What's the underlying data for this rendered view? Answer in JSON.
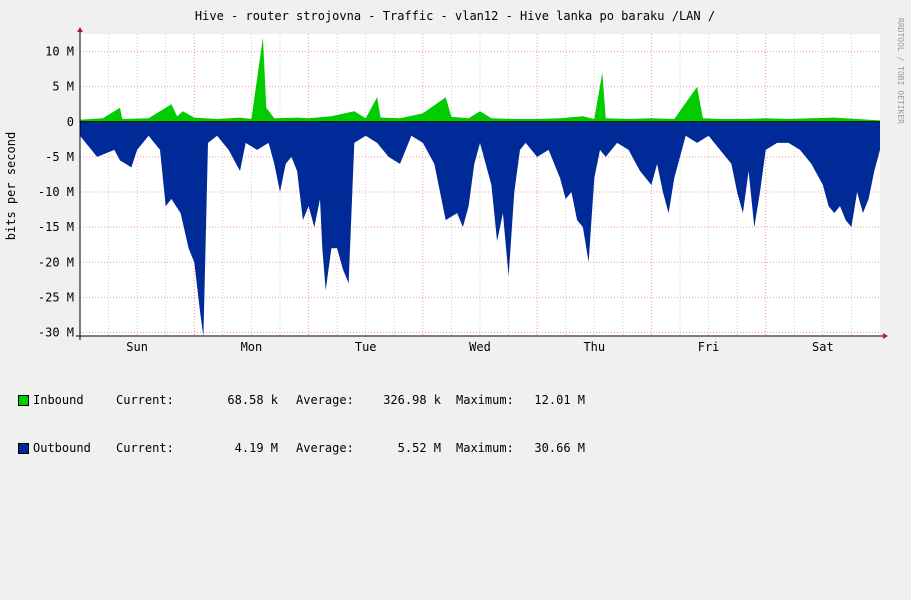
{
  "chart_data": {
    "type": "area",
    "title": "Hive - router strojovna - Traffic - vlan12 - Hive lanka po baraku /LAN /",
    "ylabel": "bits per second",
    "watermark": "RRDTOOL / TOBI OETIKER",
    "y_ticks": [
      "10 M",
      "5 M",
      "0",
      "-5 M",
      "-10 M",
      "-15 M",
      "-20 M",
      "-25 M",
      "-30 M"
    ],
    "y_tick_values": [
      10,
      5,
      0,
      -5,
      -10,
      -15,
      -20,
      -25,
      -30
    ],
    "ylim": [
      -30.5,
      12.5
    ],
    "y_unit": "Mbit/s",
    "x_ticks": [
      "Sun",
      "Mon",
      "Tue",
      "Wed",
      "Thu",
      "Fri",
      "Sat"
    ],
    "x_tick_positions": [
      0.5,
      1.5,
      2.5,
      3.5,
      4.5,
      5.5,
      6.5
    ],
    "xlim": [
      0,
      7
    ],
    "x_unit": "days",
    "grid": true,
    "colors": {
      "inbound": "#00cc00",
      "outbound": "#002a97",
      "axis": "#000000",
      "arrow": "#aa2222",
      "grid_major": "#ff9999",
      "grid_minor": "#cccccc",
      "plot_bg": "#ffffff"
    },
    "series": [
      {
        "name": "Inbound",
        "color": "#00cc00",
        "points": [
          [
            0,
            0.3
          ],
          [
            0.2,
            0.5
          ],
          [
            0.35,
            2
          ],
          [
            0.37,
            0.4
          ],
          [
            0.6,
            0.5
          ],
          [
            0.8,
            2.5
          ],
          [
            0.85,
            0.8
          ],
          [
            0.9,
            1.5
          ],
          [
            1.0,
            0.6
          ],
          [
            1.2,
            0.4
          ],
          [
            1.4,
            0.6
          ],
          [
            1.5,
            0.4
          ],
          [
            1.6,
            12
          ],
          [
            1.63,
            2
          ],
          [
            1.7,
            0.5
          ],
          [
            1.9,
            0.6
          ],
          [
            2.0,
            0.5
          ],
          [
            2.2,
            0.8
          ],
          [
            2.4,
            1.5
          ],
          [
            2.5,
            0.5
          ],
          [
            2.6,
            3.5
          ],
          [
            2.63,
            0.6
          ],
          [
            2.8,
            0.5
          ],
          [
            3.0,
            1.2
          ],
          [
            3.2,
            3.5
          ],
          [
            3.25,
            0.7
          ],
          [
            3.4,
            0.5
          ],
          [
            3.5,
            1.5
          ],
          [
            3.6,
            0.5
          ],
          [
            3.8,
            0.4
          ],
          [
            4.0,
            0.4
          ],
          [
            4.2,
            0.5
          ],
          [
            4.4,
            0.8
          ],
          [
            4.5,
            0.4
          ],
          [
            4.57,
            7
          ],
          [
            4.6,
            0.5
          ],
          [
            4.8,
            0.4
          ],
          [
            5.0,
            0.5
          ],
          [
            5.2,
            0.4
          ],
          [
            5.4,
            5
          ],
          [
            5.45,
            0.5
          ],
          [
            5.6,
            0.4
          ],
          [
            5.8,
            0.4
          ],
          [
            6.0,
            0.5
          ],
          [
            6.2,
            0.4
          ],
          [
            6.4,
            0.5
          ],
          [
            6.6,
            0.6
          ],
          [
            6.8,
            0.4
          ],
          [
            7.0,
            0.2
          ]
        ]
      },
      {
        "name": "Outbound",
        "color": "#002a97",
        "points": [
          [
            0,
            -2
          ],
          [
            0.15,
            -5
          ],
          [
            0.3,
            -4
          ],
          [
            0.35,
            -5.5
          ],
          [
            0.45,
            -6.5
          ],
          [
            0.5,
            -4
          ],
          [
            0.6,
            -2
          ],
          [
            0.7,
            -4
          ],
          [
            0.75,
            -12
          ],
          [
            0.8,
            -11
          ],
          [
            0.88,
            -13
          ],
          [
            0.95,
            -18
          ],
          [
            1.0,
            -20
          ],
          [
            1.05,
            -27
          ],
          [
            1.08,
            -30.6
          ],
          [
            1.12,
            -3
          ],
          [
            1.2,
            -2
          ],
          [
            1.3,
            -4
          ],
          [
            1.4,
            -7
          ],
          [
            1.45,
            -3
          ],
          [
            1.55,
            -4
          ],
          [
            1.65,
            -3
          ],
          [
            1.7,
            -6
          ],
          [
            1.75,
            -10
          ],
          [
            1.8,
            -6
          ],
          [
            1.85,
            -5
          ],
          [
            1.9,
            -7
          ],
          [
            1.95,
            -14
          ],
          [
            2.0,
            -12
          ],
          [
            2.05,
            -15
          ],
          [
            2.1,
            -11
          ],
          [
            2.12,
            -18
          ],
          [
            2.15,
            -24
          ],
          [
            2.2,
            -18
          ],
          [
            2.25,
            -18
          ],
          [
            2.3,
            -21
          ],
          [
            2.35,
            -23
          ],
          [
            2.4,
            -3
          ],
          [
            2.5,
            -2
          ],
          [
            2.6,
            -3
          ],
          [
            2.7,
            -5
          ],
          [
            2.8,
            -6
          ],
          [
            2.9,
            -2
          ],
          [
            3.0,
            -3
          ],
          [
            3.1,
            -6
          ],
          [
            3.15,
            -10
          ],
          [
            3.2,
            -14
          ],
          [
            3.3,
            -13
          ],
          [
            3.35,
            -15
          ],
          [
            3.4,
            -12
          ],
          [
            3.45,
            -6
          ],
          [
            3.5,
            -3
          ],
          [
            3.6,
            -9
          ],
          [
            3.65,
            -17
          ],
          [
            3.7,
            -13
          ],
          [
            3.75,
            -22
          ],
          [
            3.8,
            -10
          ],
          [
            3.85,
            -4
          ],
          [
            3.9,
            -3
          ],
          [
            4.0,
            -5
          ],
          [
            4.1,
            -4
          ],
          [
            4.2,
            -8
          ],
          [
            4.25,
            -11
          ],
          [
            4.3,
            -10
          ],
          [
            4.35,
            -14
          ],
          [
            4.4,
            -15
          ],
          [
            4.45,
            -20
          ],
          [
            4.5,
            -8
          ],
          [
            4.55,
            -4
          ],
          [
            4.6,
            -5
          ],
          [
            4.7,
            -3
          ],
          [
            4.8,
            -4
          ],
          [
            4.9,
            -7
          ],
          [
            5.0,
            -9
          ],
          [
            5.05,
            -6
          ],
          [
            5.1,
            -10
          ],
          [
            5.15,
            -13
          ],
          [
            5.2,
            -8
          ],
          [
            5.3,
            -2
          ],
          [
            5.4,
            -3
          ],
          [
            5.5,
            -2
          ],
          [
            5.6,
            -4
          ],
          [
            5.7,
            -6
          ],
          [
            5.75,
            -10
          ],
          [
            5.8,
            -13
          ],
          [
            5.85,
            -7
          ],
          [
            5.9,
            -15
          ],
          [
            5.95,
            -10
          ],
          [
            6.0,
            -4
          ],
          [
            6.1,
            -3
          ],
          [
            6.2,
            -3
          ],
          [
            6.3,
            -4
          ],
          [
            6.4,
            -6
          ],
          [
            6.5,
            -9
          ],
          [
            6.55,
            -12
          ],
          [
            6.6,
            -13
          ],
          [
            6.65,
            -12
          ],
          [
            6.7,
            -14
          ],
          [
            6.75,
            -15
          ],
          [
            6.8,
            -10
          ],
          [
            6.85,
            -13
          ],
          [
            6.9,
            -11
          ],
          [
            6.95,
            -7
          ],
          [
            7.0,
            -4
          ]
        ]
      }
    ]
  },
  "legend": {
    "rows": [
      {
        "label": "Inbound",
        "color": "#00cc00",
        "current_label": "Current:",
        "current": "68.58 k",
        "average_label": "Average:",
        "average": "326.98 k",
        "maximum_label": "Maximum:",
        "maximum": "12.01 M"
      },
      {
        "label": "Outbound",
        "color": "#002a97",
        "current_label": "Current:",
        "current": "4.19 M",
        "average_label": "Average:",
        "average": "5.52 M",
        "maximum_label": "Maximum:",
        "maximum": "30.66 M"
      }
    ]
  }
}
